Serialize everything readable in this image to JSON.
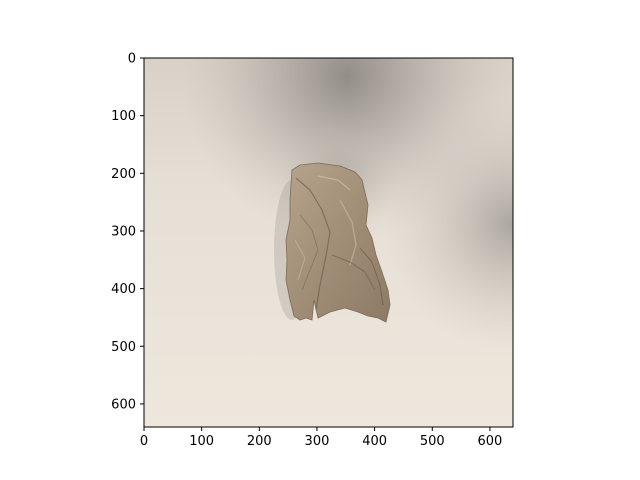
{
  "image": {
    "subject": "crumpled tissue",
    "background_color": "#e9e2d8",
    "object_color": "#a08e78"
  },
  "axes": {
    "xlim": [
      0,
      640
    ],
    "ylim": [
      640,
      0
    ],
    "x_ticks": [
      {
        "value": 0,
        "label": "0"
      },
      {
        "value": 100,
        "label": "100"
      },
      {
        "value": 200,
        "label": "200"
      },
      {
        "value": 300,
        "label": "300"
      },
      {
        "value": 400,
        "label": "400"
      },
      {
        "value": 500,
        "label": "500"
      },
      {
        "value": 600,
        "label": "600"
      }
    ],
    "y_ticks": [
      {
        "value": 0,
        "label": "0"
      },
      {
        "value": 100,
        "label": "100"
      },
      {
        "value": 200,
        "label": "200"
      },
      {
        "value": 300,
        "label": "300"
      },
      {
        "value": 400,
        "label": "400"
      },
      {
        "value": 500,
        "label": "500"
      },
      {
        "value": 600,
        "label": "600"
      }
    ]
  }
}
